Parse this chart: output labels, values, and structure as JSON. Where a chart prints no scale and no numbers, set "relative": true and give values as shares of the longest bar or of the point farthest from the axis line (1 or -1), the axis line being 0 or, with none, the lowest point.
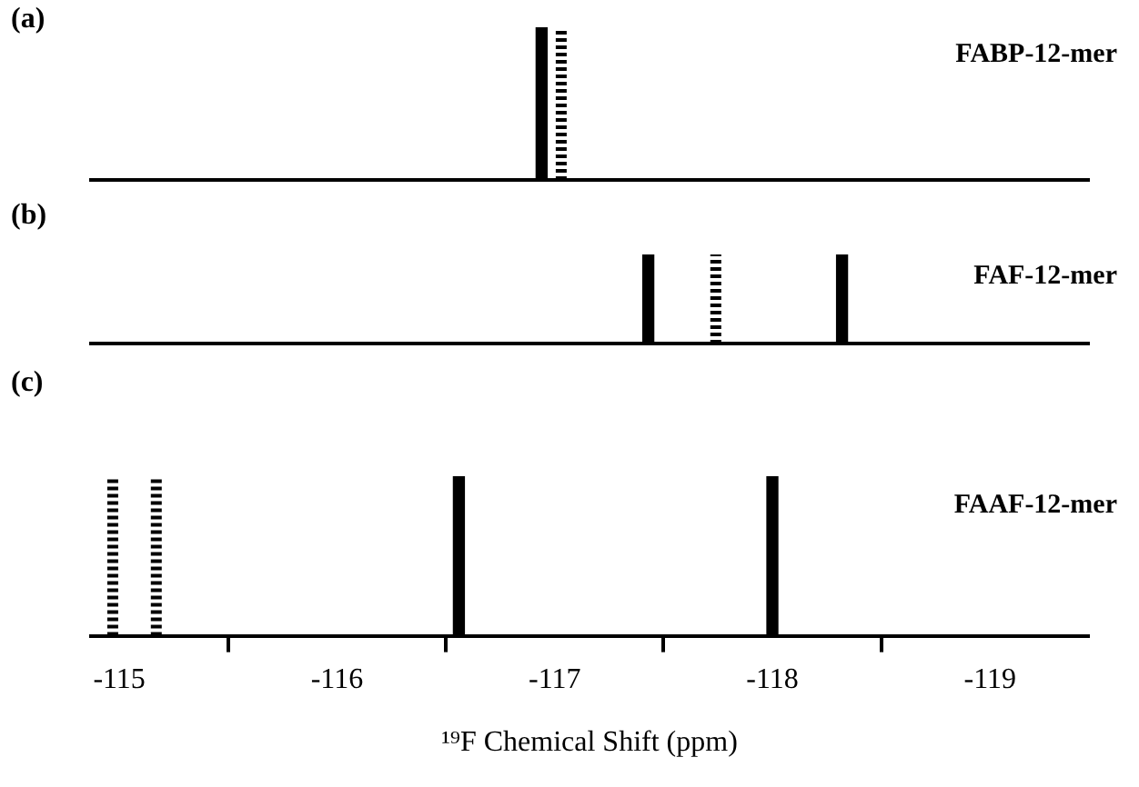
{
  "chart_data": [
    {
      "type": "bar",
      "title": "(a)",
      "annotations": [
        "FABP-12-mer"
      ],
      "relative": true,
      "xlim": [
        -114.87,
        -119.45
      ],
      "tick_labels": false,
      "series": [
        {
          "color": "#000000",
          "x": [
            -116.94
          ],
          "values": [
            1
          ]
        },
        {
          "type": "line",
          "color": "#000000",
          "line_style": "dashed",
          "marker": "none",
          "x": [
            -117.03,
            -117.03
          ],
          "values": [
            0,
            1
          ]
        }
      ]
    },
    {
      "type": "bar",
      "title": "(b)",
      "annotations": [
        "FAF-12-mer"
      ],
      "relative": true,
      "xlim": [
        -114.87,
        -119.45
      ],
      "tick_labels": false,
      "series": [
        {
          "color": "#000000",
          "x": [
            -117.43,
            -118.32
          ],
          "values": [
            1,
            1
          ]
        },
        {
          "type": "line",
          "color": "#000000",
          "line_style": "dashed",
          "marker": "none",
          "x": [
            -117.74,
            -117.74
          ],
          "values": [
            0,
            1
          ]
        }
      ]
    },
    {
      "type": "bar",
      "title": "(c)",
      "annotations": [
        "FAAF-12-mer"
      ],
      "xlabel": "¹⁹F Chemical Shift (ppm)",
      "relative": true,
      "xlim": [
        -114.87,
        -119.45
      ],
      "xticks": [
        -115,
        -116,
        -117,
        -118,
        -119
      ],
      "tick_labels": "x",
      "series": [
        {
          "color": "#000000",
          "x": [
            -116.56,
            -118.0
          ],
          "values": [
            1,
            1
          ]
        },
        {
          "type": "line",
          "color": "#000000",
          "line_style": "dashed",
          "marker": "none",
          "x": [
            -114.97,
            -114.97
          ],
          "values": [
            0,
            1
          ]
        },
        {
          "type": "line",
          "color": "#000000",
          "line_style": "dashed",
          "marker": "none",
          "x": [
            -115.17,
            -115.17
          ],
          "values": [
            0,
            1
          ]
        }
      ]
    }
  ]
}
